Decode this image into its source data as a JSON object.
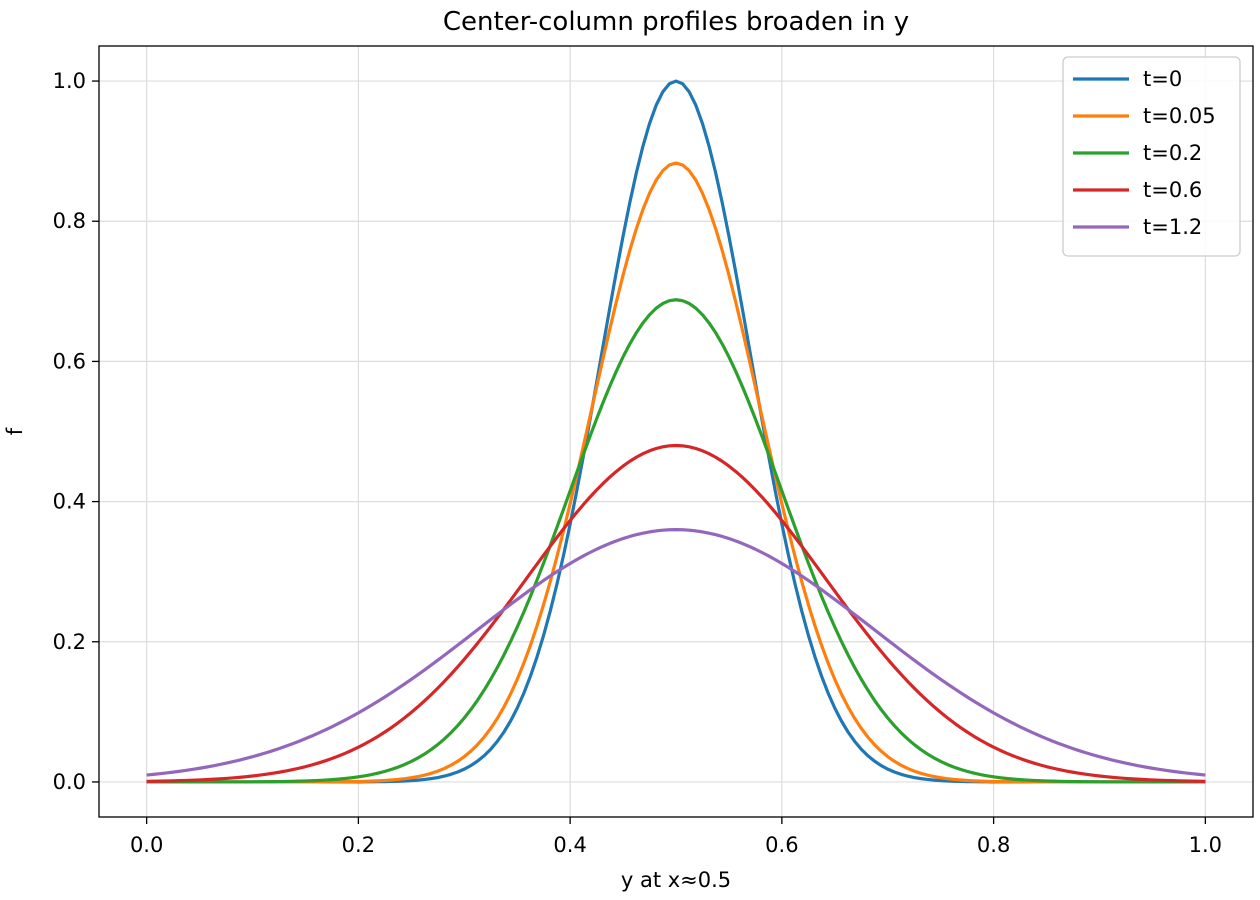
{
  "chart_data": {
    "type": "line",
    "title": "Center-column profiles broaden in y",
    "xlabel": "y at x≈0.5",
    "ylabel": "f",
    "xlim": [
      -0.045,
      1.045
    ],
    "ylim": [
      -0.05,
      1.05
    ],
    "xticks": [
      0.0,
      0.2,
      0.4,
      0.6,
      0.8,
      1.0
    ],
    "xtick_labels": [
      "0.0",
      "0.2",
      "0.4",
      "0.6",
      "0.8",
      "1.0"
    ],
    "yticks": [
      0.0,
      0.2,
      0.4,
      0.6,
      0.8,
      1.0
    ],
    "ytick_labels": [
      "0.0",
      "0.2",
      "0.4",
      "0.6",
      "0.8",
      "1.0"
    ],
    "grid": true,
    "legend_position": "top-right",
    "x_range": [
      0.0,
      1.0
    ],
    "series": [
      {
        "name": "t=0",
        "color": "#1f77b4",
        "peak": 1.0,
        "center": 0.5,
        "sigma": 0.0707
      },
      {
        "name": "t=0.05",
        "color": "#ff7f0e",
        "peak": 0.883,
        "center": 0.5,
        "sigma": 0.0791
      },
      {
        "name": "t=0.2",
        "color": "#2ca02c",
        "peak": 0.688,
        "center": 0.5,
        "sigma": 0.0995
      },
      {
        "name": "t=0.6",
        "color": "#d62728",
        "peak": 0.48,
        "center": 0.5,
        "sigma": 0.1408
      },
      {
        "name": "t=1.2",
        "color": "#9467bd",
        "peak": 0.36,
        "center": 0.5,
        "sigma": 0.1864
      }
    ]
  }
}
